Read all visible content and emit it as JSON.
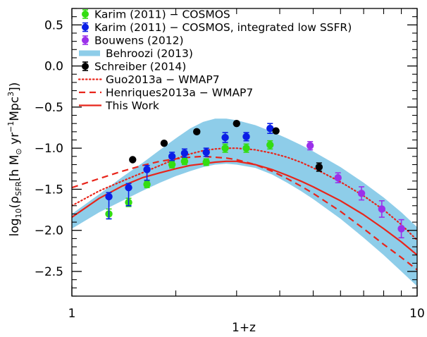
{
  "chart_data": {
    "type": "scatter",
    "xscale": "log",
    "xlim": [
      1,
      10
    ],
    "ylim": [
      -2.8,
      0.7
    ],
    "xlabel": "1+z",
    "ylabel_parts": {
      "pre": "log",
      "sub": "10",
      "rho": "(ρ",
      "rho_sub": "SFR",
      "unit": "[h M",
      "odot": "⊙",
      "yr": " yr",
      "yr_sup": "−1",
      "mpc": "Mpc",
      "mpc_sup": "3",
      "close": "])"
    },
    "xticks": [
      {
        "value": 1,
        "label": "1"
      },
      {
        "value": 10,
        "label": "10"
      }
    ],
    "yticks": [
      {
        "value": 0.5,
        "label": "0.5"
      },
      {
        "value": 0.0,
        "label": "0.0"
      },
      {
        "value": -0.5,
        "label": "−0.5"
      },
      {
        "value": -1.0,
        "label": "−1.0"
      },
      {
        "value": -1.5,
        "label": "−1.5"
      },
      {
        "value": -2.0,
        "label": "−2.0"
      },
      {
        "value": -2.5,
        "label": "−2.5"
      }
    ],
    "legend": [
      {
        "label": "Karim (2011) − COSMOS",
        "type": "point",
        "color": "#33dd11"
      },
      {
        "label": "Karim (2011) − COSMOS, integrated low SSFR)",
        "type": "point",
        "color": "#0a1ee6"
      },
      {
        "label": "Bouwens (2012)",
        "type": "point",
        "color": "#9b30ea"
      },
      {
        "label": "Behroozi (2013)",
        "type": "band",
        "color": "#8ecde9"
      },
      {
        "label": "Schreiber (2014)",
        "type": "point",
        "color": "#000000"
      },
      {
        "label": "Guo2013a − WMAP7",
        "type": "dotted",
        "color": "#e8251b"
      },
      {
        "label": "Henriques2013a − WMAP7",
        "type": "dashed",
        "color": "#e8251b"
      },
      {
        "label": "This Work",
        "type": "solid",
        "color": "#e8251b"
      }
    ],
    "series": [
      {
        "name": "Karim (2011) − COSMOS",
        "kind": "points",
        "color": "#33dd11",
        "points": [
          {
            "x": 1.28,
            "y": -1.8,
            "err": 0.06
          },
          {
            "x": 1.46,
            "y": -1.66,
            "err": 0.05
          },
          {
            "x": 1.65,
            "y": -1.44,
            "err": 0.04
          },
          {
            "x": 1.95,
            "y": -1.2,
            "err": 0.04
          },
          {
            "x": 2.12,
            "y": -1.16,
            "err": 0.04
          },
          {
            "x": 2.45,
            "y": -1.17,
            "err": 0.04
          },
          {
            "x": 2.78,
            "y": -1.0,
            "err": 0.05
          },
          {
            "x": 3.2,
            "y": -1.0,
            "err": 0.05
          },
          {
            "x": 3.75,
            "y": -0.96,
            "err": 0.05
          }
        ]
      },
      {
        "name": "Karim (2011) − COSMOS, integrated low SSFR)",
        "kind": "points",
        "color": "#0a1ee6",
        "points": [
          {
            "x": 1.28,
            "y": -1.59,
            "err_hi": 0.05,
            "err_lo": 0.27
          },
          {
            "x": 1.46,
            "y": -1.48,
            "err_hi": 0.05,
            "err_lo": 0.22
          },
          {
            "x": 1.65,
            "y": -1.26,
            "err_hi": 0.05,
            "err_lo": 0.13
          },
          {
            "x": 1.95,
            "y": -1.1,
            "err": 0.05
          },
          {
            "x": 2.12,
            "y": -1.06,
            "err": 0.05
          },
          {
            "x": 2.45,
            "y": -1.05,
            "err": 0.05
          },
          {
            "x": 2.78,
            "y": -0.87,
            "err": 0.06
          },
          {
            "x": 3.2,
            "y": -0.86,
            "err": 0.05
          },
          {
            "x": 3.75,
            "y": -0.76,
            "err": 0.06
          }
        ]
      },
      {
        "name": "Bouwens (2012)",
        "kind": "points",
        "color": "#9b30ea",
        "points": [
          {
            "x": 4.9,
            "y": -0.97,
            "err": 0.05
          },
          {
            "x": 5.9,
            "y": -1.36,
            "err": 0.06
          },
          {
            "x": 6.9,
            "y": -1.55,
            "err": 0.08
          },
          {
            "x": 7.9,
            "y": -1.74,
            "err": 0.1
          },
          {
            "x": 9.0,
            "y": -1.98,
            "err": 0.11
          }
        ]
      },
      {
        "name": "Schreiber (2014)",
        "kind": "points",
        "color": "#000000",
        "points": [
          {
            "x": 1.5,
            "y": -1.14,
            "err": 0.0
          },
          {
            "x": 1.85,
            "y": -0.94,
            "err": 0.0
          },
          {
            "x": 2.3,
            "y": -0.8,
            "err": 0.0
          },
          {
            "x": 3.0,
            "y": -0.7,
            "err": 0.0
          },
          {
            "x": 3.9,
            "y": -0.79,
            "err": 0.0
          },
          {
            "x": 5.2,
            "y": -1.23,
            "err": 0.05
          }
        ]
      },
      {
        "name": "Behroozi (2013)",
        "kind": "band",
        "color": "#8ecde9",
        "x": [
          1.0,
          1.2,
          1.4,
          1.6,
          1.8,
          2.0,
          2.2,
          2.4,
          2.6,
          2.8,
          3.0,
          3.4,
          3.8,
          4.2,
          4.6,
          5.0,
          6.0,
          7.0,
          8.0,
          9.0,
          10.0
        ],
        "upper": [
          -1.8,
          -1.56,
          -1.35,
          -1.18,
          -1.02,
          -0.88,
          -0.76,
          -0.68,
          -0.64,
          -0.64,
          -0.66,
          -0.72,
          -0.8,
          -0.88,
          -0.96,
          -1.04,
          -1.23,
          -1.42,
          -1.6,
          -1.78,
          -1.96
        ],
        "lower": [
          -1.98,
          -1.78,
          -1.64,
          -1.52,
          -1.42,
          -1.34,
          -1.28,
          -1.23,
          -1.2,
          -1.19,
          -1.2,
          -1.24,
          -1.32,
          -1.42,
          -1.52,
          -1.62,
          -1.86,
          -2.09,
          -2.3,
          -2.5,
          -2.68
        ]
      },
      {
        "name": "Guo2013a − WMAP7",
        "kind": "line",
        "style": "dotted",
        "color": "#e8251b",
        "x": [
          1.0,
          1.2,
          1.4,
          1.6,
          1.8,
          2.0,
          2.2,
          2.4,
          2.6,
          2.8,
          3.0,
          3.4,
          3.8,
          4.2,
          4.6,
          5.0,
          6.0,
          7.0,
          8.0,
          9.0,
          10.0
        ],
        "y": [
          -1.7,
          -1.52,
          -1.4,
          -1.3,
          -1.21,
          -1.13,
          -1.07,
          -1.03,
          -1.01,
          -1.0,
          -1.0,
          -1.02,
          -1.06,
          -1.11,
          -1.17,
          -1.24,
          -1.41,
          -1.58,
          -1.75,
          -1.93,
          -2.12
        ]
      },
      {
        "name": "Henriques2013a − WMAP7",
        "kind": "line",
        "style": "dashed",
        "color": "#e8251b",
        "x": [
          1.0,
          1.2,
          1.4,
          1.6,
          1.8,
          2.0,
          2.2,
          2.4,
          2.6,
          2.8,
          3.0,
          3.4,
          3.8,
          4.2,
          4.6,
          5.0,
          6.0,
          7.0,
          8.0,
          9.0,
          10.0
        ],
        "y": [
          -1.48,
          -1.37,
          -1.28,
          -1.21,
          -1.16,
          -1.13,
          -1.11,
          -1.1,
          -1.11,
          -1.12,
          -1.14,
          -1.2,
          -1.28,
          -1.37,
          -1.46,
          -1.55,
          -1.77,
          -1.98,
          -2.17,
          -2.33,
          -2.48
        ]
      },
      {
        "name": "This Work",
        "kind": "line",
        "style": "solid",
        "color": "#e8251b",
        "x": [
          1.0,
          1.2,
          1.4,
          1.6,
          1.8,
          2.0,
          2.2,
          2.4,
          2.6,
          2.8,
          3.0,
          3.4,
          3.8,
          4.2,
          4.6,
          5.0,
          6.0,
          7.0,
          8.0,
          9.0,
          10.0
        ],
        "y": [
          -1.84,
          -1.61,
          -1.46,
          -1.36,
          -1.3,
          -1.25,
          -1.21,
          -1.19,
          -1.17,
          -1.16,
          -1.16,
          -1.2,
          -1.26,
          -1.33,
          -1.4,
          -1.47,
          -1.64,
          -1.81,
          -1.98,
          -2.14,
          -2.3
        ]
      }
    ]
  }
}
